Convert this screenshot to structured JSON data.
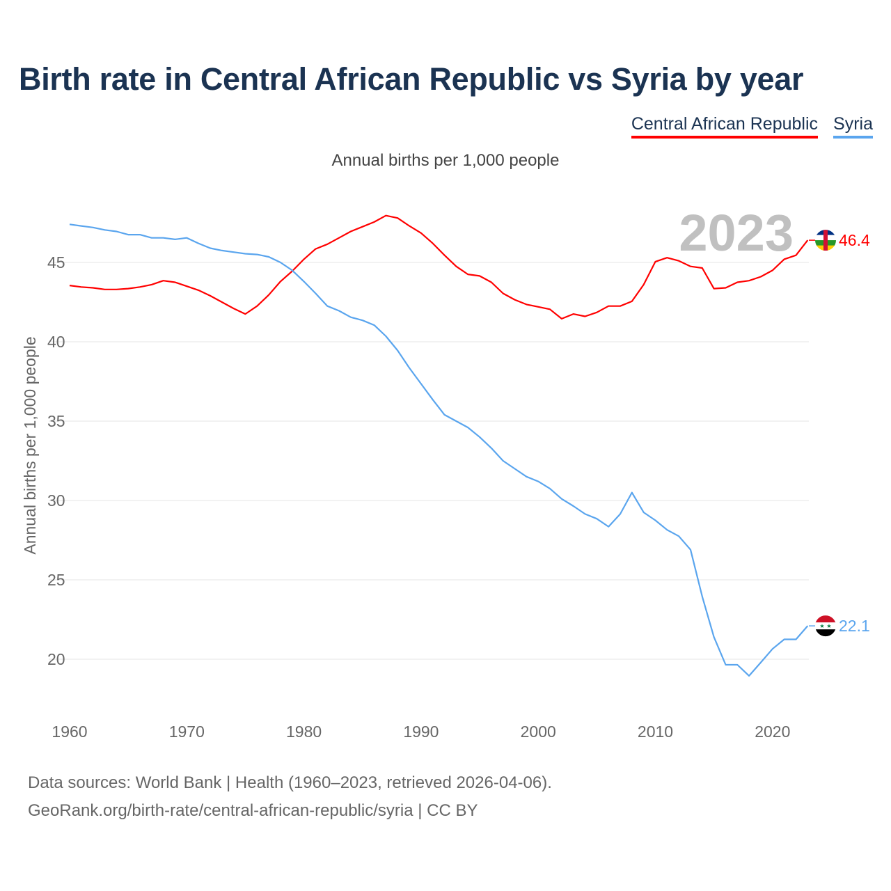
{
  "colors": {
    "car": "#ff0000",
    "syria": "#5aa5ee",
    "title": "#1b3352",
    "grid": "#e6e6e6"
  },
  "chart_data": {
    "type": "line",
    "title": "Birth rate in Central African Republic vs Syria by year",
    "subtitle": "Annual births per 1,000 people",
    "ylabel": "Annual births per 1,000 people",
    "xlabel": "",
    "year_watermark": "2023",
    "xlim": [
      1960,
      2023
    ],
    "ylim": [
      17,
      48.5
    ],
    "grid": true,
    "legend_position": "top-right",
    "x_ticks": [
      "1960",
      "1970",
      "1980",
      "1990",
      "2000",
      "2010",
      "2020"
    ],
    "y_ticks": [
      "20",
      "25",
      "30",
      "35",
      "40",
      "45"
    ],
    "x": [
      1960,
      1961,
      1962,
      1963,
      1964,
      1965,
      1966,
      1967,
      1968,
      1969,
      1970,
      1971,
      1972,
      1973,
      1974,
      1975,
      1976,
      1977,
      1978,
      1979,
      1980,
      1981,
      1982,
      1983,
      1984,
      1985,
      1986,
      1987,
      1988,
      1989,
      1990,
      1991,
      1992,
      1993,
      1994,
      1995,
      1996,
      1997,
      1998,
      1999,
      2000,
      2001,
      2002,
      2003,
      2004,
      2005,
      2006,
      2007,
      2008,
      2009,
      2010,
      2011,
      2012,
      2013,
      2014,
      2015,
      2016,
      2017,
      2018,
      2019,
      2020,
      2021,
      2022,
      2023
    ],
    "series": [
      {
        "name": "Central African Republic",
        "end_label": "46.4",
        "values": [
          43.55,
          43.45,
          43.4,
          43.3,
          43.3,
          43.35,
          43.45,
          43.6,
          43.85,
          43.75,
          43.5,
          43.25,
          42.9,
          42.5,
          42.1,
          41.75,
          42.25,
          42.95,
          43.8,
          44.45,
          45.2,
          45.85,
          46.15,
          46.55,
          46.95,
          47.25,
          47.55,
          47.95,
          47.8,
          47.3,
          46.85,
          46.2,
          45.45,
          44.75,
          44.25,
          44.15,
          43.75,
          43.05,
          42.65,
          42.35,
          42.2,
          42.05,
          41.45,
          41.75,
          41.6,
          41.85,
          42.25,
          42.25,
          42.55,
          43.6,
          45.05,
          45.3,
          45.1,
          44.75,
          44.65,
          43.35,
          43.4,
          43.75,
          43.85,
          44.1,
          44.5,
          45.2,
          45.45,
          46.4
        ]
      },
      {
        "name": "Syria",
        "end_label": "22.1",
        "values": [
          47.4,
          47.3,
          47.2,
          47.05,
          46.95,
          46.75,
          46.75,
          46.55,
          46.55,
          46.45,
          46.55,
          46.2,
          45.9,
          45.75,
          45.65,
          45.55,
          45.5,
          45.35,
          45.0,
          44.5,
          43.8,
          43.05,
          42.25,
          41.95,
          41.55,
          41.35,
          41.05,
          40.35,
          39.45,
          38.35,
          37.35,
          36.35,
          35.4,
          35.0,
          34.6,
          34.0,
          33.3,
          32.5,
          32.0,
          31.5,
          31.2,
          30.75,
          30.1,
          29.65,
          29.15,
          28.85,
          28.35,
          29.15,
          30.5,
          29.25,
          28.75,
          28.15,
          27.75,
          26.9,
          23.95,
          21.4,
          19.65,
          19.65,
          18.95,
          19.8,
          20.65,
          21.25,
          21.25,
          22.1
        ]
      }
    ]
  },
  "footer": {
    "line1": "Data sources: World Bank | Health (1960–2023, retrieved 2026-04-06).",
    "line2": "GeoRank.org/birth-rate/central-african-republic/syria | CC BY"
  }
}
